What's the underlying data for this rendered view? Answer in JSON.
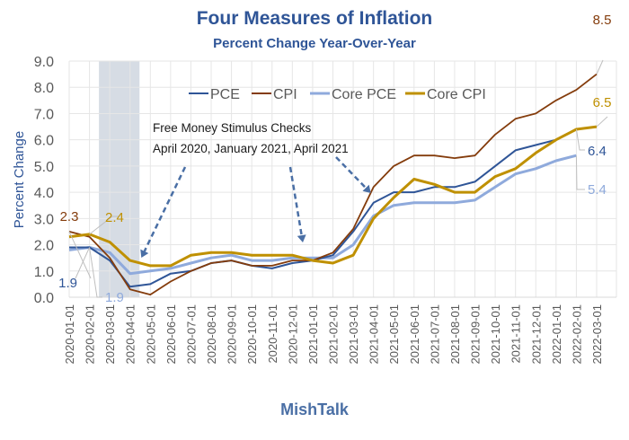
{
  "chart_data": {
    "type": "line",
    "title": "Four Measures of Inflation",
    "subtitle": "Percent Change Year-Over-Year",
    "xlabel": "",
    "ylabel": "Percent Change",
    "footer": "MishTalk",
    "ylim": [
      0,
      9
    ],
    "y_ticks": [
      "0.0",
      "1.0",
      "2.0",
      "3.0",
      "4.0",
      "5.0",
      "6.0",
      "7.0",
      "8.0",
      "9.0"
    ],
    "grid": true,
    "legend_position": "top-center",
    "x": [
      "2020-01-01",
      "2020-02-01",
      "2020-03-01",
      "2020-04-01",
      "2020-05-01",
      "2020-06-01",
      "2020-07-01",
      "2020-08-01",
      "2020-09-01",
      "2020-10-01",
      "2020-11-01",
      "2020-12-01",
      "2021-01-01",
      "2021-02-01",
      "2021-03-01",
      "2021-04-01",
      "2021-05-01",
      "2021-06-01",
      "2021-07-01",
      "2021-08-01",
      "2021-09-01",
      "2021-10-01",
      "2021-11-01",
      "2021-12-01",
      "2022-01-01",
      "2022-02-01",
      "2022-03-01"
    ],
    "shaded_region": {
      "from": "2020-02-15",
      "to": "2020-04-15",
      "color": "#d6dce4"
    },
    "series": [
      {
        "name": "PCE",
        "color": "#2f5597",
        "values": [
          1.9,
          1.9,
          1.4,
          0.4,
          0.5,
          0.9,
          1.0,
          1.3,
          1.4,
          1.2,
          1.1,
          1.3,
          1.4,
          1.6,
          2.5,
          3.6,
          4.0,
          4.0,
          4.2,
          4.2,
          4.4,
          5.0,
          5.6,
          5.8,
          6.0,
          6.4,
          null
        ]
      },
      {
        "name": "CPI",
        "color": "#843c0c",
        "values": [
          2.5,
          2.3,
          1.5,
          0.3,
          0.1,
          0.6,
          1.0,
          1.3,
          1.4,
          1.2,
          1.2,
          1.4,
          1.4,
          1.7,
          2.6,
          4.2,
          5.0,
          5.4,
          5.4,
          5.3,
          5.4,
          6.2,
          6.8,
          7.0,
          7.5,
          7.9,
          8.5
        ]
      },
      {
        "name": "Core PCE",
        "color": "#8faadc",
        "values": [
          1.8,
          1.9,
          1.7,
          0.9,
          1.0,
          1.1,
          1.3,
          1.5,
          1.6,
          1.4,
          1.4,
          1.5,
          1.5,
          1.5,
          2.0,
          3.1,
          3.5,
          3.6,
          3.6,
          3.6,
          3.7,
          4.2,
          4.7,
          4.9,
          5.2,
          5.4,
          null
        ]
      },
      {
        "name": "Core CPI",
        "color": "#bf9000",
        "values": [
          2.3,
          2.4,
          2.1,
          1.4,
          1.2,
          1.2,
          1.6,
          1.7,
          1.7,
          1.6,
          1.6,
          1.6,
          1.4,
          1.3,
          1.6,
          3.0,
          3.8,
          4.5,
          4.3,
          4.0,
          4.0,
          4.6,
          4.9,
          5.5,
          6.0,
          6.4,
          6.5
        ]
      }
    ],
    "data_labels": [
      {
        "text": "2.3",
        "series": "CPI",
        "color": "#843c0c"
      },
      {
        "text": "2.4",
        "series": "Core CPI",
        "color": "#bf9000"
      },
      {
        "text": "1.9",
        "series": "PCE",
        "color": "#2f5597"
      },
      {
        "text": "1.9",
        "series": "Core PCE",
        "color": "#8faadc"
      },
      {
        "text": "8.5",
        "series": "CPI",
        "color": "#843c0c"
      },
      {
        "text": "6.5",
        "series": "Core CPI",
        "color": "#bf9000"
      },
      {
        "text": "6.4",
        "series": "PCE",
        "color": "#2f5597"
      },
      {
        "text": "5.4",
        "series": "Core PCE",
        "color": "#8faadc"
      }
    ],
    "annotation": {
      "lines": [
        "Free Money Stimulus Checks",
        "April 2020, January 2021, April 2021"
      ],
      "arrow_color": "#4a6fa5",
      "arrow_targets": [
        "2020-05-01",
        "2021-01-01",
        "2021-04-01"
      ]
    }
  }
}
